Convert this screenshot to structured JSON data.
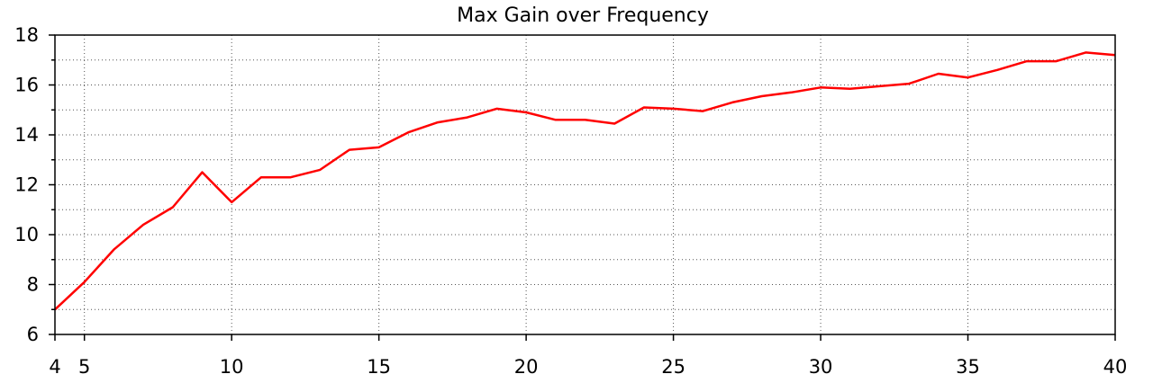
{
  "chart_data": {
    "type": "line",
    "title": "Max Gain over Frequency",
    "xlabel": "",
    "ylabel": "",
    "xlim": [
      4,
      40
    ],
    "ylim": [
      6,
      18
    ],
    "x_ticks": [
      4,
      5,
      10,
      15,
      20,
      25,
      30,
      35,
      40
    ],
    "y_ticks": [
      6,
      8,
      10,
      12,
      14,
      16,
      18
    ],
    "grid": true,
    "series": [
      {
        "color": "#ff0000",
        "x": [
          4,
          5,
          6,
          7,
          8,
          9,
          10,
          11,
          12,
          13,
          14,
          15,
          16,
          17,
          18,
          19,
          20,
          21,
          22,
          23,
          24,
          25,
          26,
          27,
          28,
          29,
          30,
          31,
          32,
          33,
          34,
          35,
          36,
          37,
          38,
          39,
          40
        ],
        "y": [
          7.0,
          8.1,
          9.4,
          10.4,
          11.1,
          12.5,
          11.3,
          12.3,
          12.3,
          12.6,
          13.4,
          13.5,
          14.1,
          14.5,
          14.7,
          15.05,
          14.9,
          14.6,
          14.6,
          14.45,
          15.1,
          15.05,
          14.95,
          15.3,
          15.55,
          15.7,
          15.9,
          15.85,
          15.95,
          16.05,
          16.45,
          16.3,
          16.6,
          16.95,
          16.95,
          17.3,
          17.2
        ]
      }
    ]
  }
}
